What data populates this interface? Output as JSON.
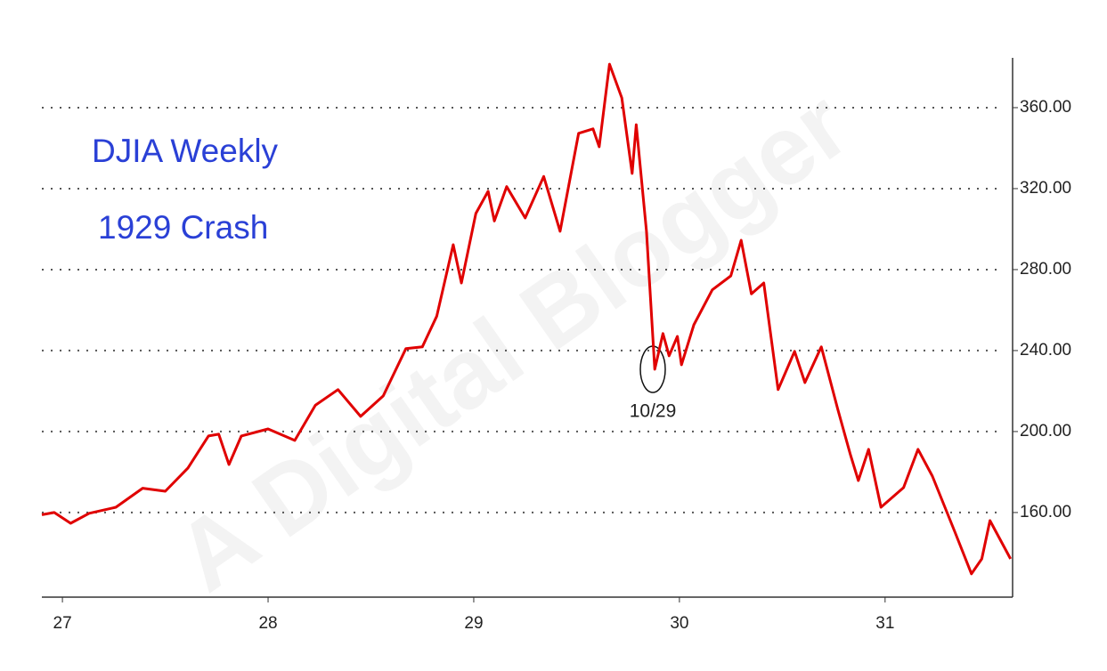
{
  "chart_data": {
    "type": "line",
    "title": "DJIA Weekly",
    "subtitle": "1929 Crash",
    "annotation": "10/29",
    "watermark": "A Digital Blogger",
    "x": [
      26.9,
      26.96,
      27.04,
      27.13,
      27.26,
      27.39,
      27.5,
      27.61,
      27.71,
      27.76,
      27.81,
      27.87,
      28.0,
      28.13,
      28.23,
      28.34,
      28.45,
      28.56,
      28.67,
      28.75,
      28.82,
      28.9,
      28.94,
      29.01,
      29.07,
      29.1,
      29.16,
      29.25,
      29.34,
      29.42,
      29.51,
      29.58,
      29.61,
      29.66,
      29.72,
      29.77,
      29.79,
      29.84,
      29.88,
      29.92,
      29.95,
      29.99,
      30.01,
      30.07,
      30.16,
      30.25,
      30.3,
      30.35,
      30.41,
      30.48,
      30.56,
      30.61,
      30.69,
      30.77,
      30.83,
      30.87,
      30.92,
      30.98,
      31.09,
      31.16,
      31.23,
      31.34,
      31.42,
      31.47,
      31.51,
      31.61
    ],
    "series": [
      {
        "name": "DJIA",
        "color": "#e00000",
        "values": [
          158.9,
          160.0,
          154.7,
          159.6,
          162.6,
          172.0,
          170.5,
          182.0,
          197.8,
          198.7,
          183.7,
          197.8,
          201.3,
          195.6,
          213.0,
          220.7,
          207.5,
          217.6,
          241.0,
          241.8,
          257.0,
          292.3,
          273.4,
          307.7,
          318.7,
          304.0,
          321.0,
          305.5,
          326.0,
          298.9,
          347.3,
          349.5,
          340.7,
          381.5,
          364.8,
          327.5,
          351.6,
          298.9,
          230.8,
          248.4,
          237.4,
          247.0,
          233.0,
          252.7,
          270.0,
          276.9,
          294.5,
          268.0,
          273.4,
          220.7,
          239.6,
          224.2,
          241.8,
          211.0,
          189.0,
          175.8,
          191.2,
          162.6,
          172.3,
          191.2,
          178.0,
          150.3,
          129.7,
          137.1,
          156.0,
          137.1
        ]
      }
    ],
    "xlim": [
      26.9,
      31.62
    ],
    "xticks": [
      27,
      28,
      29,
      30,
      31
    ],
    "ylim": [
      118.2,
      384.6
    ],
    "yticks": [
      {
        "value": 160,
        "label": "160.00"
      },
      {
        "value": 200,
        "label": "200.00"
      },
      {
        "value": 240,
        "label": "240.00"
      },
      {
        "value": 280,
        "label": "280.00"
      },
      {
        "value": 320,
        "label": "320.00"
      },
      {
        "value": 360,
        "label": "360.00"
      }
    ],
    "grid": true
  }
}
